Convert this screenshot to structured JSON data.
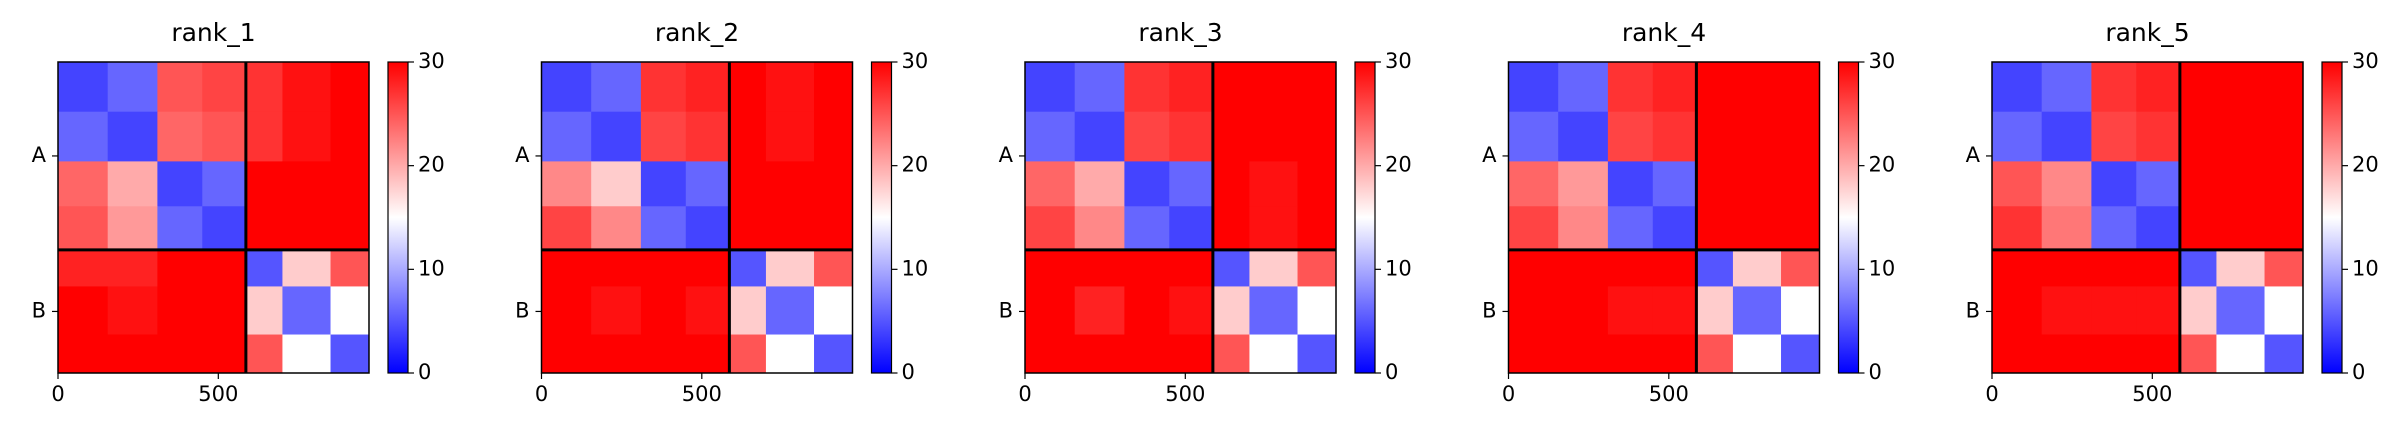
{
  "chart_data": [
    {
      "type": "heatmap",
      "title": "rank_1",
      "bins": [
        0,
        155,
        310,
        450,
        586,
        700,
        850,
        970
      ],
      "values": [
        [
          4,
          6,
          25,
          26,
          27,
          29,
          30
        ],
        [
          6,
          4,
          24,
          25,
          27,
          29,
          30
        ],
        [
          24,
          20,
          4,
          6,
          30,
          30,
          30
        ],
        [
          25,
          21,
          6,
          4,
          30,
          30,
          30
        ],
        [
          28,
          28,
          30,
          30,
          5,
          18,
          25
        ],
        [
          30,
          29,
          30,
          30,
          18,
          6,
          15
        ],
        [
          30,
          30,
          30,
          30,
          25,
          15,
          5
        ]
      ],
      "xlim": [
        0,
        970
      ],
      "ylim": [
        970,
        0
      ],
      "xticks": [
        0,
        500
      ],
      "yticks": [
        {
          "value": 293,
          "label": "A"
        },
        {
          "value": 778,
          "label": "B"
        }
      ],
      "chain_breaks": [
        586
      ],
      "clim": [
        0,
        30
      ],
      "cticks": [
        0,
        10,
        20,
        30
      ],
      "colormap": [
        "#0000ff",
        "#ffffff",
        "#ff0000"
      ]
    },
    {
      "type": "heatmap",
      "title": "rank_2",
      "bins": [
        0,
        155,
        310,
        450,
        586,
        700,
        850,
        970
      ],
      "values": [
        [
          4,
          6,
          27,
          28,
          30,
          29,
          30
        ],
        [
          6,
          4,
          26,
          27,
          30,
          29,
          30
        ],
        [
          22,
          18,
          4,
          6,
          30,
          30,
          30
        ],
        [
          26,
          22,
          6,
          4,
          30,
          30,
          30
        ],
        [
          30,
          30,
          30,
          30,
          5,
          18,
          25
        ],
        [
          30,
          29,
          30,
          29,
          18,
          6,
          15
        ],
        [
          30,
          30,
          30,
          30,
          25,
          15,
          5
        ]
      ],
      "xlim": [
        0,
        970
      ],
      "ylim": [
        970,
        0
      ],
      "xticks": [
        0,
        500
      ],
      "yticks": [
        {
          "value": 293,
          "label": "A"
        },
        {
          "value": 778,
          "label": "B"
        }
      ],
      "chain_breaks": [
        586
      ],
      "clim": [
        0,
        30
      ],
      "cticks": [
        0,
        10,
        20,
        30
      ],
      "colormap": [
        "#0000ff",
        "#ffffff",
        "#ff0000"
      ]
    },
    {
      "type": "heatmap",
      "title": "rank_3",
      "bins": [
        0,
        155,
        310,
        450,
        586,
        700,
        850,
        970
      ],
      "values": [
        [
          4,
          6,
          27,
          28,
          30,
          30,
          30
        ],
        [
          6,
          4,
          26,
          27,
          30,
          30,
          30
        ],
        [
          24,
          20,
          4,
          6,
          30,
          29,
          30
        ],
        [
          26,
          22,
          6,
          4,
          30,
          29,
          30
        ],
        [
          30,
          30,
          30,
          30,
          5,
          18,
          25
        ],
        [
          30,
          28,
          30,
          29,
          18,
          6,
          15
        ],
        [
          30,
          30,
          30,
          30,
          25,
          15,
          5
        ]
      ],
      "xlim": [
        0,
        970
      ],
      "ylim": [
        970,
        0
      ],
      "xticks": [
        0,
        500
      ],
      "yticks": [
        {
          "value": 293,
          "label": "A"
        },
        {
          "value": 778,
          "label": "B"
        }
      ],
      "chain_breaks": [
        586
      ],
      "clim": [
        0,
        30
      ],
      "cticks": [
        0,
        10,
        20,
        30
      ],
      "colormap": [
        "#0000ff",
        "#ffffff",
        "#ff0000"
      ]
    },
    {
      "type": "heatmap",
      "title": "rank_4",
      "bins": [
        0,
        155,
        310,
        450,
        586,
        700,
        850,
        970
      ],
      "values": [
        [
          4,
          6,
          27,
          28,
          30,
          30,
          30
        ],
        [
          6,
          4,
          26,
          27,
          30,
          30,
          30
        ],
        [
          24,
          21,
          4,
          6,
          30,
          30,
          30
        ],
        [
          26,
          22,
          6,
          4,
          30,
          30,
          30
        ],
        [
          30,
          30,
          30,
          30,
          5,
          18,
          25
        ],
        [
          30,
          30,
          29,
          29,
          18,
          6,
          15
        ],
        [
          30,
          30,
          30,
          30,
          25,
          15,
          5
        ]
      ],
      "xlim": [
        0,
        970
      ],
      "ylim": [
        970,
        0
      ],
      "xticks": [
        0,
        500
      ],
      "yticks": [
        {
          "value": 293,
          "label": "A"
        },
        {
          "value": 778,
          "label": "B"
        }
      ],
      "chain_breaks": [
        586
      ],
      "clim": [
        0,
        30
      ],
      "cticks": [
        0,
        10,
        20,
        30
      ],
      "colormap": [
        "#0000ff",
        "#ffffff",
        "#ff0000"
      ]
    },
    {
      "type": "heatmap",
      "title": "rank_5",
      "bins": [
        0,
        155,
        310,
        450,
        586,
        700,
        850,
        970
      ],
      "values": [
        [
          4,
          6,
          27,
          28,
          30,
          30,
          30
        ],
        [
          6,
          4,
          26,
          27,
          30,
          30,
          30
        ],
        [
          25,
          22,
          4,
          6,
          30,
          30,
          30
        ],
        [
          27,
          23,
          6,
          4,
          30,
          30,
          30
        ],
        [
          30,
          30,
          30,
          30,
          5,
          18,
          25
        ],
        [
          30,
          29,
          29,
          29,
          18,
          6,
          15
        ],
        [
          30,
          30,
          30,
          30,
          25,
          15,
          5
        ]
      ],
      "xlim": [
        0,
        970
      ],
      "ylim": [
        970,
        0
      ],
      "xticks": [
        0,
        500
      ],
      "yticks": [
        {
          "value": 293,
          "label": "A"
        },
        {
          "value": 778,
          "label": "B"
        }
      ],
      "chain_breaks": [
        586
      ],
      "clim": [
        0,
        30
      ],
      "cticks": [
        0,
        10,
        20,
        30
      ],
      "colormap": [
        "#0000ff",
        "#ffffff",
        "#ff0000"
      ]
    }
  ]
}
